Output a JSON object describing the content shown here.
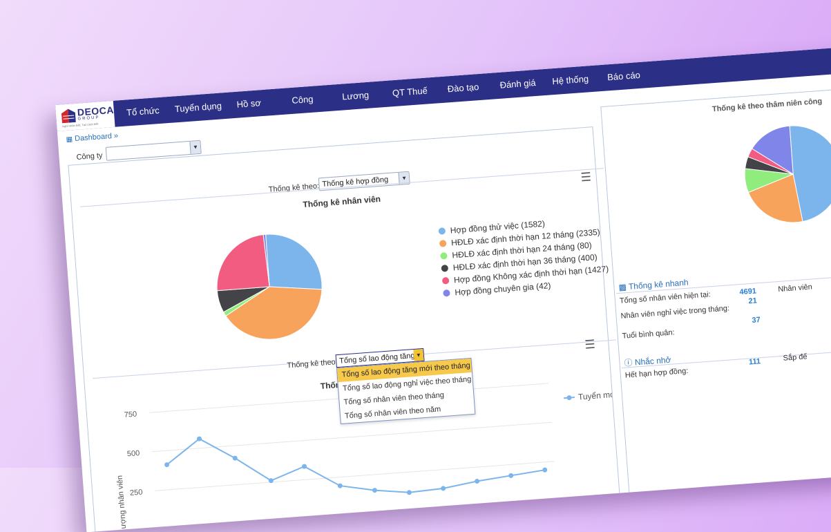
{
  "nav": {
    "logo": "DEOCA",
    "logo_sub": "GROUP",
    "logo_slogan": "Nghĩ nhân biết, Tạo cách biết",
    "items": [
      "Tổ chức",
      "Tuyển dụng",
      "Hồ sơ",
      "Công",
      "Lương",
      "QT Thuế",
      "Đào tạo",
      "Đánh giá",
      "Hệ thống",
      "Báo cáo"
    ]
  },
  "breadcrumb": "Dashboard »",
  "company": {
    "label": "Công ty",
    "value": ""
  },
  "stats1": {
    "filter_label": "Thống kê theo:",
    "filter_value": "Thống kê hợp đồng",
    "title": "Thống kê nhân viên",
    "legend": [
      "Hợp đồng thử việc (1582)",
      "HĐLĐ xác định thời hạn 12 tháng (2335)",
      "HĐLĐ xác định thời hạn 24 tháng (80)",
      "HĐLĐ xác định thời hạn 36 tháng (400)",
      "Hợp đồng Không xác định thời hạn (1427)",
      "Hợp đồng chuyên gia (42)"
    ]
  },
  "stats2": {
    "filter_label": "Thống kê theo:",
    "filter_value": "Tổng số lao động tăng m",
    "title_partial": "Thống k",
    "options": [
      "Tổng số lao động tăng mới theo tháng",
      "Tổng số lao động nghỉ việc theo tháng",
      "Tổng số nhân viên theo tháng",
      "Tổng số nhân viên theo năm"
    ],
    "selected_option": 0
  },
  "right_panel": {
    "title": "Thống kê theo thâm niên công",
    "quick_stats": {
      "heading": "Thống kê nhanh",
      "rows": [
        {
          "label": "Tổng số nhân viên hiện tại:",
          "value": "4691",
          "extra": "Nhân viên"
        },
        {
          "label": "Nhân viên nghỉ việc trong tháng:",
          "value": "21"
        },
        {
          "label": "Tuổi bình quân:",
          "value": "37"
        }
      ]
    },
    "reminders": {
      "heading": "Nhắc nhở",
      "rows": [
        {
          "label": "Hết hạn hợp đồng:",
          "value": "111",
          "extra": "Sắp đế"
        }
      ]
    }
  },
  "chart_data": [
    {
      "type": "pie",
      "title": "Thống kê nhân viên",
      "labels": [
        "Hợp đồng thử việc",
        "HĐLĐ xác định thời hạn 12 tháng",
        "HĐLĐ xác định thời hạn 24 tháng",
        "HĐLĐ xác định thời hạn 36 tháng",
        "Hợp đồng Không xác định thời hạn",
        "Hợp đồng chuyên gia"
      ],
      "values": [
        1582,
        2335,
        80,
        400,
        1427,
        42
      ],
      "colors": [
        "#7cb5ec",
        "#f7a35c",
        "#90ed7d",
        "#434348",
        "#f15c80",
        "#8085e9"
      ],
      "legend": "right"
    },
    {
      "type": "line",
      "title": "",
      "ylabel": "ượng nhân viên",
      "ylim": [
        0,
        750
      ],
      "yticks": [
        250,
        500,
        750
      ],
      "series": [
        {
          "name": "Tuyển mới",
          "color": "#7cb5ec",
          "values": [
            410,
            560,
            420,
            260,
            335,
            195,
            150,
            120,
            130,
            160,
            180,
            200
          ]
        }
      ],
      "legend": "right"
    },
    {
      "type": "pie",
      "title": "Thống kê theo thâm niên công",
      "values": [
        48,
        22,
        8,
        4,
        3,
        15
      ],
      "colors": [
        "#7cb5ec",
        "#f7a35c",
        "#90ed7d",
        "#434348",
        "#f15c80",
        "#8085e9"
      ]
    }
  ]
}
